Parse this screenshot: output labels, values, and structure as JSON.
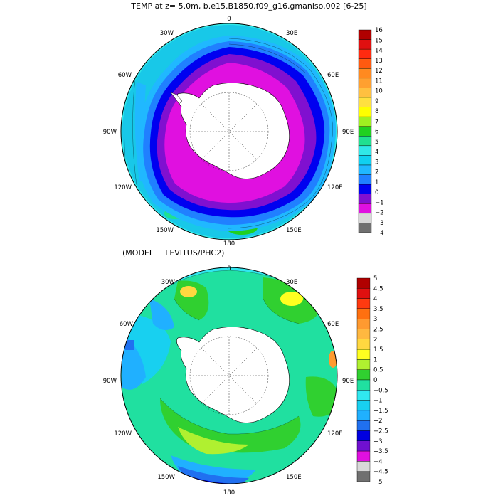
{
  "top_panel": {
    "title": "TEMP at z=   5.0m, b.e15.B1850.f09_g16.gmaniso.002 [6-25]",
    "lon_labels": {
      "top": "0",
      "top_right": "30E",
      "right_upper": "60E",
      "right": "90E",
      "right_lower": "120E",
      "bottom_right": "150E",
      "bottom": "180",
      "bottom_left": "150W",
      "left_lower": "120W",
      "left": "90W",
      "left_upper": "60W",
      "top_left": "30W"
    },
    "colorbar": {
      "labels": [
        "16",
        "15",
        "14",
        "13",
        "12",
        "11",
        "10",
        "9",
        "8",
        "7",
        "6",
        "5",
        "4",
        "3",
        "2",
        "1",
        "0",
        "−1",
        "−2",
        "−3",
        "−4"
      ],
      "colors": [
        "#b00000",
        "#e01010",
        "#ff2a10",
        "#ff5a10",
        "#ff8a20",
        "#ffa030",
        "#ffc040",
        "#ffe040",
        "#ffff00",
        "#a0f020",
        "#20d020",
        "#20e090",
        "#30e8e8",
        "#10d0f0",
        "#20b8ff",
        "#2080ff",
        "#0000f0",
        "#8010d0",
        "#e010e0",
        "#d8d8d8",
        "#707070"
      ]
    }
  },
  "bottom_panel": {
    "title": "(MODEL − LEVITUS/PHC2)",
    "lon_labels": {
      "top": "0",
      "top_right": "30E",
      "right_upper": "60E",
      "right": "90E",
      "right_lower": "120E",
      "bottom_right": "150E",
      "bottom": "180",
      "bottom_left": "150W",
      "left_lower": "120W",
      "left": "90W",
      "left_upper": "60W",
      "top_left": "30W"
    },
    "colorbar": {
      "labels": [
        "5",
        "4.5",
        "4",
        "3.5",
        "3",
        "2.5",
        "2",
        "1.5",
        "1",
        "0.5",
        "0",
        "−0.5",
        "−1",
        "−1.5",
        "−2",
        "−2.5",
        "−3",
        "−3.5",
        "−4",
        "−4.5",
        "−5"
      ],
      "colors": [
        "#b00000",
        "#e01010",
        "#ff3a10",
        "#ff7010",
        "#ff9a30",
        "#ffb840",
        "#ffd840",
        "#ffff20",
        "#b0f030",
        "#30d030",
        "#20e0a0",
        "#30e8f0",
        "#18d0f0",
        "#20b0ff",
        "#2070f0",
        "#0000e0",
        "#7010d0",
        "#e010e0",
        "#d8d8d8",
        "#707070"
      ]
    }
  }
}
